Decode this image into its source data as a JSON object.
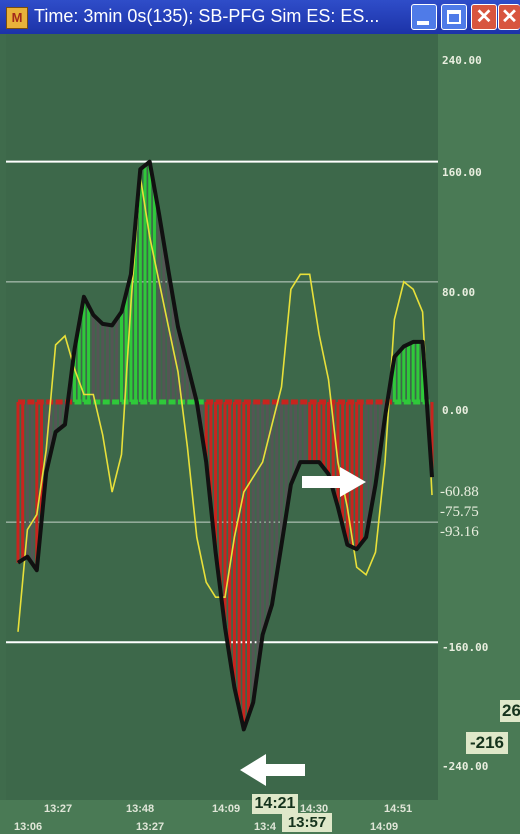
{
  "window": {
    "title": "Time: 3min 0s(135); SB-PFG Sim ES: ES...",
    "app_icon": "chart-app-icon",
    "controls": {
      "minimize": "minimize-icon",
      "maximize": "maximize-icon",
      "close_glyph": "✕"
    }
  },
  "colors": {
    "background": "#3f6b4c",
    "black_line": "#111111",
    "yellow_line": "#e8e03a",
    "hist_red": "#c8241e",
    "hist_green": "#2fc93a",
    "hist_gray": "#555555",
    "zero_green": "#2fc93a",
    "zero_red": "#c8241e",
    "level_line": "#ffffff"
  },
  "chart_data": {
    "type": "line",
    "y_ticks": [
      "240.00",
      "160.00",
      "80.00",
      "0.00",
      "-160.00",
      "-240.00"
    ],
    "value_labels": [
      "-60.88",
      "-75.75",
      "-93.16"
    ],
    "badges": {
      "current_value": "-216",
      "partial_value": "26"
    },
    "ylim": [
      -265,
      245
    ],
    "levels": [
      160,
      80,
      -80,
      -160
    ],
    "x_labels_top": [
      "13:27",
      "13:48",
      "14:09",
      "14:30",
      "14:51"
    ],
    "x_labels_bottom": [
      "13:06",
      "13:27",
      "13:4",
      "14:09"
    ],
    "time_cursor": "14:21",
    "time_cursor_2": "13:57",
    "series": [
      {
        "values": [
          -107,
          -103,
          -112,
          -47,
          -20,
          -15,
          35,
          70,
          58,
          52,
          51,
          60,
          85,
          155,
          160,
          125,
          87,
          50,
          25,
          0,
          -40,
          -100,
          -150,
          -190,
          -218,
          -200,
          -155,
          -135,
          -95,
          -55,
          -40,
          -40,
          -40,
          -48,
          -70,
          -95,
          -98,
          -90,
          -55,
          -10,
          30,
          37,
          40,
          40,
          -50
        ]
      },
      {
        "values": [
          -153,
          -85,
          -75,
          -32,
          38,
          44,
          22,
          5,
          5,
          -22,
          -60,
          -35,
          65,
          150,
          110,
          80,
          50,
          20,
          -30,
          -90,
          -120,
          -130,
          -130,
          -90,
          -60,
          -50,
          -40,
          -15,
          10,
          75,
          85,
          85,
          45,
          15,
          -40,
          -70,
          -110,
          -115,
          -100,
          -40,
          55,
          80,
          75,
          60,
          -62
        ]
      }
    ],
    "annotations": [
      "right-arrow",
      "left-arrow"
    ]
  }
}
